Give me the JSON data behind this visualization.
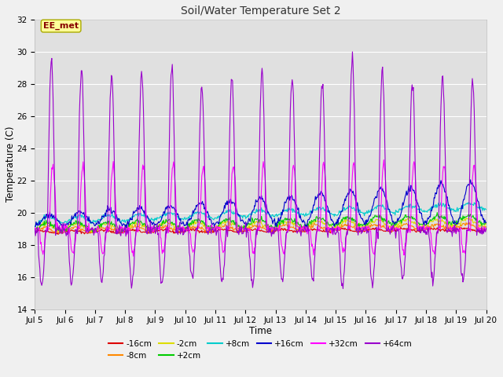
{
  "title": "Soil/Water Temperature Set 2",
  "xlabel": "Time",
  "ylabel": "Temperature (C)",
  "xlim": [
    0,
    15
  ],
  "ylim": [
    14,
    32
  ],
  "yticks": [
    14,
    16,
    18,
    20,
    22,
    24,
    26,
    28,
    30,
    32
  ],
  "xtick_labels": [
    "Jul 5",
    "Jul 6",
    "Jul 7",
    "Jul 8",
    "Jul 9",
    "Jul 10",
    "Jul 11",
    "Jul 12",
    "Jul 13",
    "Jul 14",
    "Jul 15",
    "Jul 16",
    "Jul 17",
    "Jul 18",
    "Jul 19",
    "Jul 20"
  ],
  "series_colors": {
    "-16cm": "#dd0000",
    "-8cm": "#ff8800",
    "-2cm": "#dddd00",
    "+2cm": "#00cc00",
    "+8cm": "#00cccc",
    "+16cm": "#0000cc",
    "+32cm": "#ff00ff",
    "+64cm": "#9900cc"
  },
  "fig_bg": "#f0f0f0",
  "plot_bg": "#e0e0e0",
  "grid_color": "#ffffff",
  "watermark_text": "EE_met",
  "watermark_bg": "#ffff99",
  "watermark_fg": "#880000",
  "watermark_edge": "#aaaa00"
}
